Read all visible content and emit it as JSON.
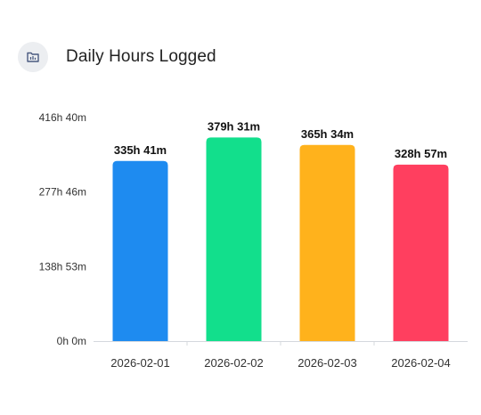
{
  "header": {
    "title": "Daily Hours Logged",
    "icon": "chart-folder-icon"
  },
  "chart_data": {
    "type": "bar",
    "title": "Daily Hours Logged",
    "xlabel": "",
    "ylabel": "",
    "ylim": [
      0,
      416.67
    ],
    "ytick_values": [
      0,
      138.88,
      277.77,
      416.67
    ],
    "ytick_labels": [
      "0h 0m",
      "138h 53m",
      "277h 46m",
      "416h 40m"
    ],
    "categories": [
      "2026-02-01",
      "2026-02-02",
      "2026-02-03",
      "2026-02-04"
    ],
    "values": [
      335.68,
      379.52,
      365.57,
      328.95
    ],
    "value_labels": [
      "335h 41m",
      "379h 31m",
      "365h 34m",
      "328h 57m"
    ],
    "colors": [
      "#1e8bf0",
      "#12df8c",
      "#ffb21c",
      "#ff3f5f"
    ],
    "grid": false,
    "legend": "none"
  }
}
